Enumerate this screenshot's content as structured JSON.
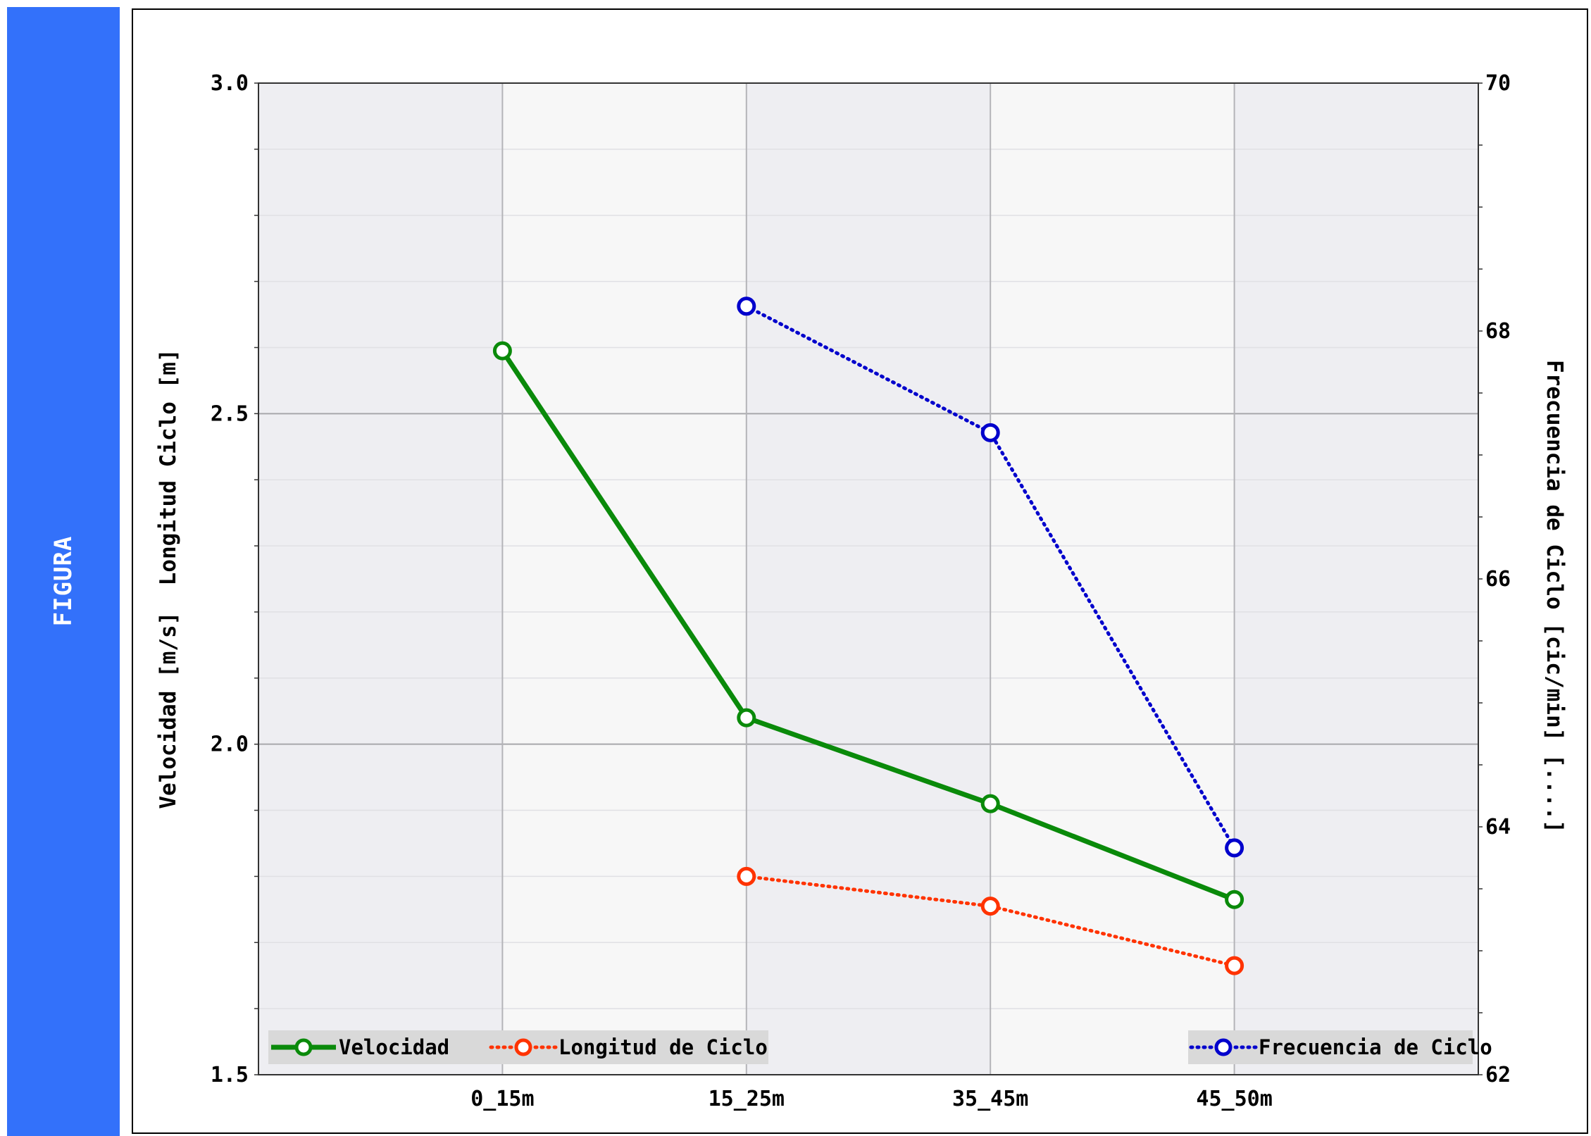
{
  "sidebar": {
    "label": "FIGURA"
  },
  "colors": {
    "sidebar": "#3371fa",
    "velocidad": "#0a8a0a",
    "longitud": "#ff3300",
    "frecuencia": "#0000cc",
    "band_dark": "#eeeef2",
    "band_light": "#f7f7f7"
  },
  "chart_data": {
    "type": "line",
    "categories": [
      "0_15m",
      "15_25m",
      "35_45m",
      "45_50m"
    ],
    "left_axis": {
      "label": "Velocidad [m/s]  Longitud Ciclo [m]",
      "ylim": [
        1.5,
        3.0
      ],
      "ticks": [
        "1.5",
        "2.0",
        "2.5",
        "3.0"
      ]
    },
    "right_axis": {
      "label": "Frecuencia de Ciclo [cic/min] [....]",
      "ylim": [
        62,
        70
      ],
      "ticks": [
        "62",
        "64",
        "66",
        "68",
        "70"
      ]
    },
    "grid": true,
    "series": [
      {
        "name": "Velocidad",
        "axis": "left",
        "style": "solid",
        "color": "#0a8a0a",
        "values": [
          2.595,
          2.04,
          1.91,
          1.765
        ]
      },
      {
        "name": "Longitud de Ciclo",
        "axis": "left",
        "style": "dotted",
        "color": "#ff3300",
        "values": [
          null,
          1.8,
          1.755,
          1.665
        ]
      },
      {
        "name": "Frecuencia de Ciclo",
        "axis": "right",
        "style": "dotted",
        "color": "#0000cc",
        "values": [
          null,
          68.2,
          67.18,
          63.83
        ]
      }
    ],
    "legend": {
      "left_placement": "bottom-left",
      "right_placement": "bottom-right"
    }
  }
}
